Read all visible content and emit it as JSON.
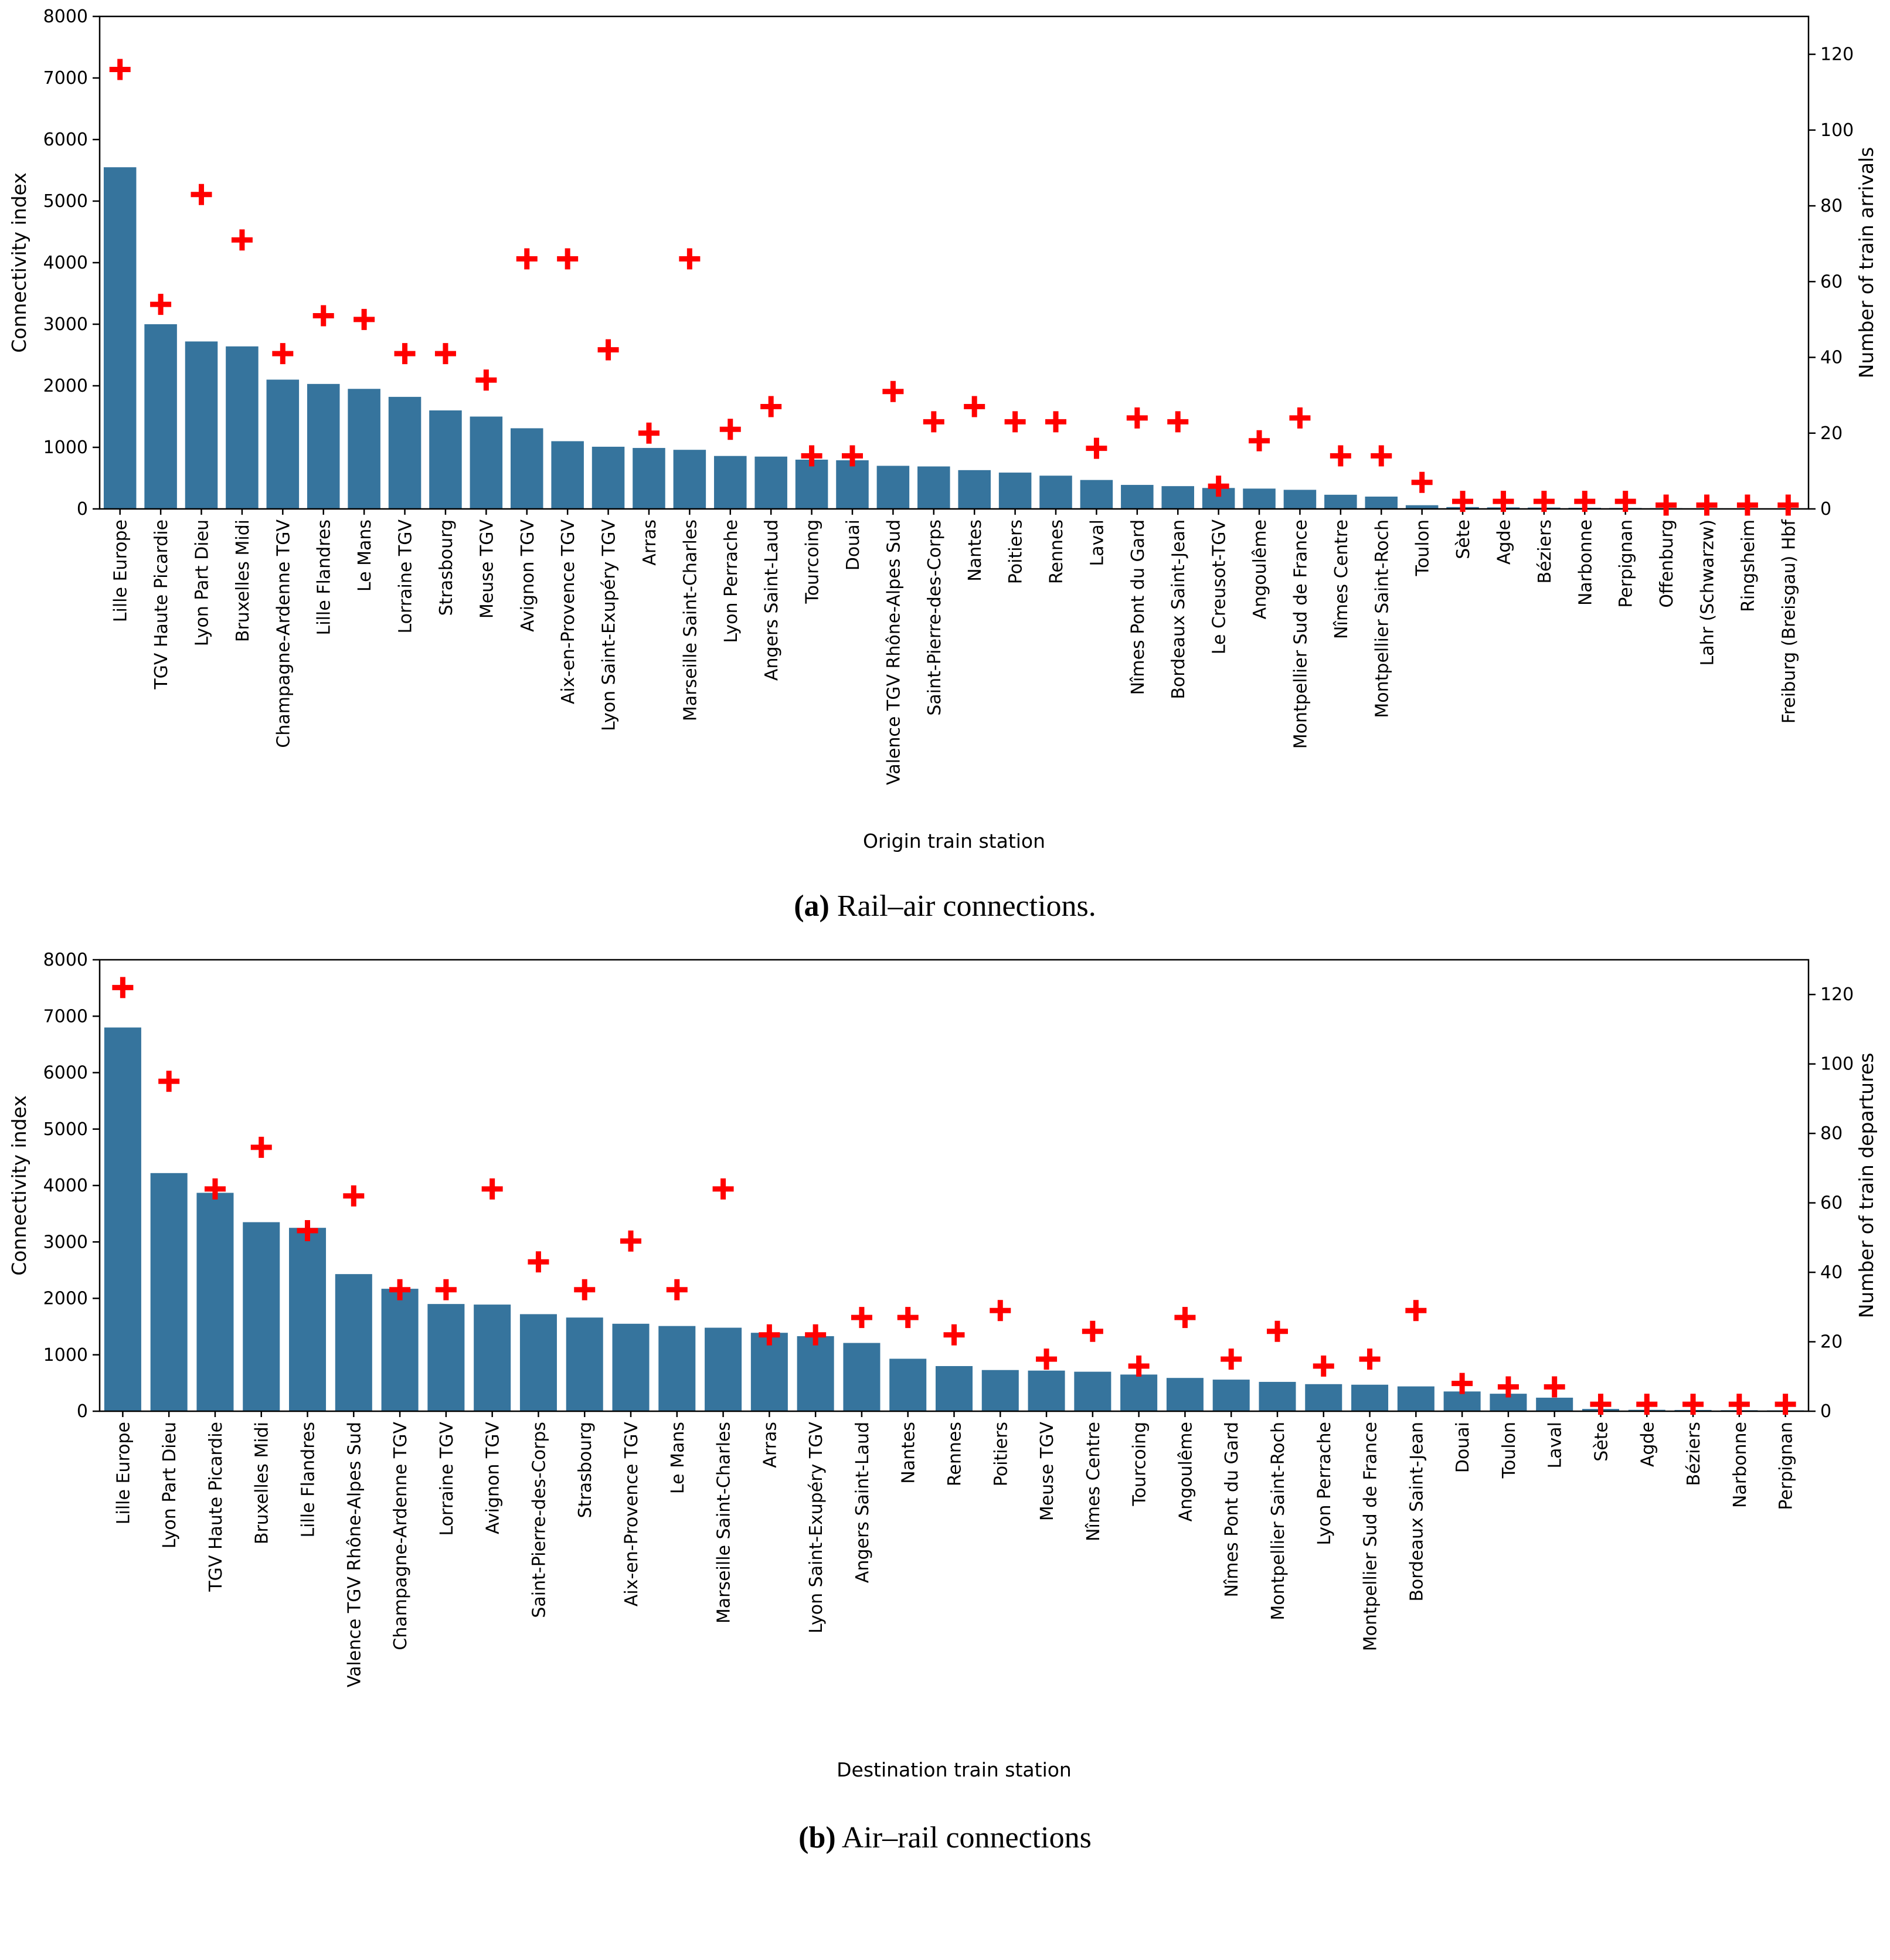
{
  "captions": {
    "a_label": "(a)",
    "a_text": " Rail–air connections.",
    "b_label": "(b)",
    "b_text": " Air–rail connections"
  },
  "chart_data": [
    {
      "type": "bar",
      "title": "",
      "xlabel": "Origin train station",
      "ylabel_left": "Connectivity index",
      "ylabel_right": "Number of train arrivals",
      "ylim_left": [
        0,
        8000
      ],
      "ylim_right": [
        0,
        130
      ],
      "yticks_left": [
        0,
        1000,
        2000,
        3000,
        4000,
        5000,
        6000,
        7000,
        8000
      ],
      "yticks_right": [
        0,
        20,
        40,
        60,
        80,
        100,
        120
      ],
      "grid": false,
      "legend": false,
      "bar_color": "#36749d",
      "marker_color": "#ff0000",
      "categories": [
        "Lille Europe",
        "TGV Haute Picardie",
        "Lyon Part Dieu",
        "Bruxelles Midi",
        "Champagne-Ardenne TGV",
        "Lille Flandres",
        "Le Mans",
        "Lorraine TGV",
        "Strasbourg",
        "Meuse TGV",
        "Avignon TGV",
        "Aix-en-Provence TGV",
        "Lyon Saint-Exupéry TGV",
        "Arras",
        "Marseille Saint-Charles",
        "Lyon Perrache",
        "Angers Saint-Laud",
        "Tourcoing",
        "Douai",
        "Valence TGV Rhône-Alpes Sud",
        "Saint-Pierre-des-Corps",
        "Nantes",
        "Poitiers",
        "Rennes",
        "Laval",
        "Nîmes Pont du Gard",
        "Bordeaux Saint-Jean",
        "Le Creusot-TGV",
        "Angoulême",
        "Montpellier Sud de France",
        "Nîmes Centre",
        "Montpellier Saint-Roch",
        "Toulon",
        "Sète",
        "Agde",
        "Béziers",
        "Narbonne",
        "Perpignan",
        "Offenburg",
        "Lahr (Schwarzw)",
        "Ringsheim",
        "Freiburg (Breisgau) Hbf"
      ],
      "series": [
        {
          "name": "Connectivity index",
          "axis": "left",
          "kind": "bar",
          "values": [
            5550,
            3000,
            2720,
            2640,
            2100,
            2030,
            1950,
            1820,
            1600,
            1500,
            1310,
            1100,
            1010,
            990,
            960,
            860,
            850,
            800,
            790,
            700,
            690,
            630,
            590,
            540,
            470,
            390,
            370,
            340,
            330,
            310,
            230,
            200,
            60,
            30,
            25,
            22,
            18,
            15,
            12,
            10,
            8,
            6
          ]
        },
        {
          "name": "Number of train arrivals",
          "axis": "right",
          "kind": "scatter-plus",
          "values": [
            116,
            54,
            83,
            71,
            41,
            51,
            50,
            41,
            41,
            34,
            66,
            66,
            42,
            20,
            66,
            21,
            27,
            14,
            14,
            31,
            23,
            27,
            23,
            23,
            16,
            24,
            23,
            6,
            18,
            24,
            14,
            14,
            7,
            2,
            2,
            2,
            2,
            2,
            1,
            1,
            1,
            1
          ]
        }
      ]
    },
    {
      "type": "bar",
      "title": "",
      "xlabel": "Destination train station",
      "ylabel_left": "Connectivity index",
      "ylabel_right": "Number of train departures",
      "ylim_left": [
        0,
        8000
      ],
      "ylim_right": [
        0,
        130
      ],
      "yticks_left": [
        0,
        1000,
        2000,
        3000,
        4000,
        5000,
        6000,
        7000,
        8000
      ],
      "yticks_right": [
        0,
        20,
        40,
        60,
        80,
        100,
        120
      ],
      "grid": false,
      "legend": false,
      "bar_color": "#36749d",
      "marker_color": "#ff0000",
      "categories": [
        "Lille Europe",
        "Lyon Part Dieu",
        "TGV Haute Picardie",
        "Bruxelles Midi",
        "Lille Flandres",
        "Valence TGV Rhône-Alpes Sud",
        "Champagne-Ardenne TGV",
        "Lorraine TGV",
        "Avignon TGV",
        "Saint-Pierre-des-Corps",
        "Strasbourg",
        "Aix-en-Provence TGV",
        "Le Mans",
        "Marseille Saint-Charles",
        "Arras",
        "Lyon Saint-Exupéry TGV",
        "Angers Saint-Laud",
        "Nantes",
        "Rennes",
        "Poitiers",
        "Meuse TGV",
        "Nîmes Centre",
        "Tourcoing",
        "Angoulême",
        "Nîmes Pont du Gard",
        "Montpellier Saint-Roch",
        "Lyon Perrache",
        "Montpellier Sud de France",
        "Bordeaux Saint-Jean",
        "Douai",
        "Toulon",
        "Laval",
        "Sète",
        "Agde",
        "Béziers",
        "Narbonne",
        "Perpignan"
      ],
      "series": [
        {
          "name": "Connectivity index",
          "axis": "left",
          "kind": "bar",
          "values": [
            6800,
            4220,
            3870,
            3350,
            3250,
            2430,
            2170,
            1900,
            1890,
            1720,
            1660,
            1550,
            1510,
            1480,
            1390,
            1330,
            1210,
            930,
            800,
            730,
            720,
            700,
            650,
            590,
            560,
            520,
            480,
            470,
            440,
            350,
            310,
            240,
            40,
            25,
            22,
            18,
            15
          ]
        },
        {
          "name": "Number of train departures",
          "axis": "right",
          "kind": "scatter-plus",
          "values": [
            122,
            95,
            64,
            76,
            52,
            62,
            35,
            35,
            64,
            43,
            35,
            49,
            35,
            64,
            22,
            22,
            27,
            27,
            22,
            29,
            15,
            23,
            13,
            27,
            15,
            23,
            13,
            15,
            29,
            8,
            7,
            7,
            2,
            2,
            2,
            2,
            2
          ]
        }
      ]
    }
  ]
}
